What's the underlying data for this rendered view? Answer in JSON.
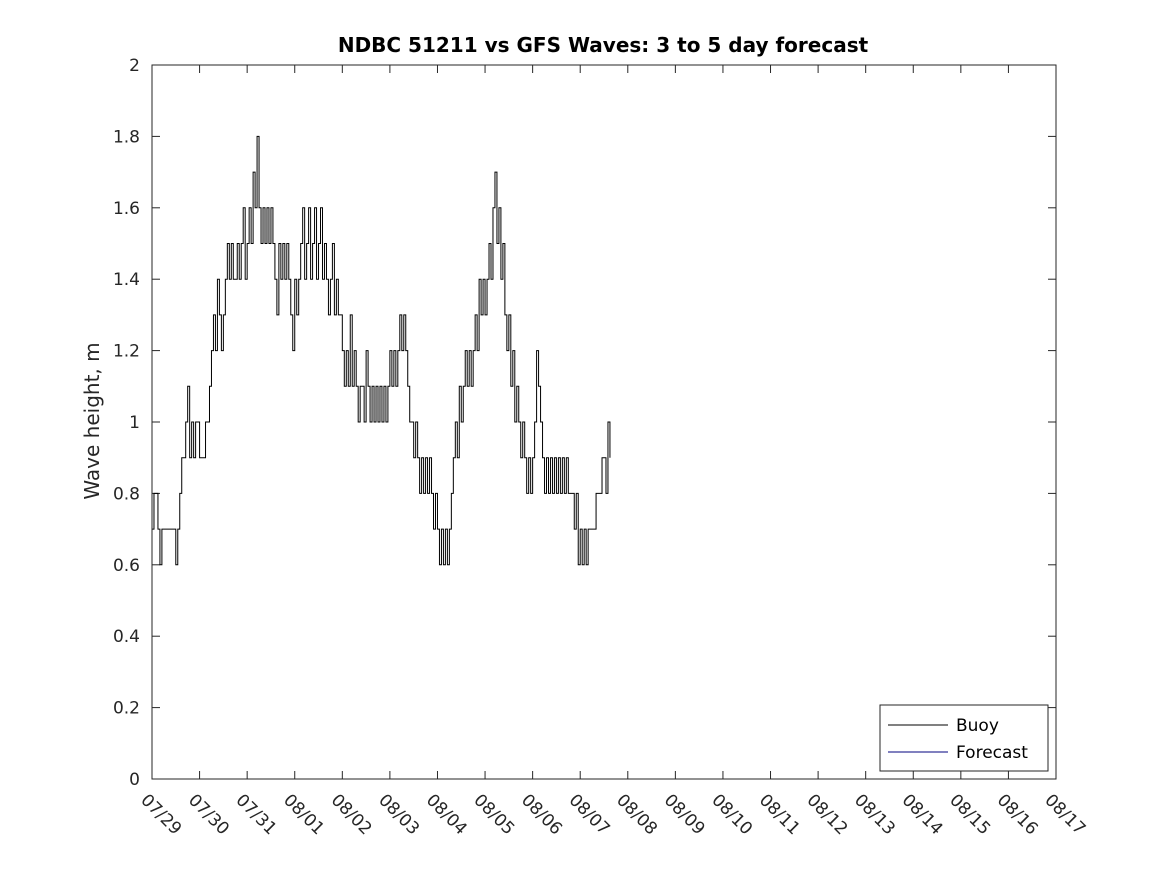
{
  "chart_data": {
    "type": "line",
    "title": "NDBC 51211 vs GFS Waves: 3 to 5 day forecast",
    "xlabel": "",
    "ylabel": "Wave height, m",
    "xlim": [
      "07/29",
      "08/17"
    ],
    "ylim": [
      0,
      2
    ],
    "x_ticks": [
      "07/29",
      "07/30",
      "07/31",
      "08/01",
      "08/02",
      "08/03",
      "08/04",
      "08/05",
      "08/06",
      "08/07",
      "08/08",
      "08/09",
      "08/10",
      "08/11",
      "08/12",
      "08/13",
      "08/14",
      "08/15",
      "08/16",
      "08/17"
    ],
    "y_ticks": [
      "0",
      "0.2",
      "0.4",
      "0.6",
      "0.8",
      "1",
      "1.2",
      "1.4",
      "1.6",
      "1.8",
      "2"
    ],
    "legend": {
      "position": "bottom-right"
    },
    "series": [
      {
        "name": "Buoy",
        "color": "#000000",
        "points": [
          [
            "07/29 00:00",
            0.7
          ],
          [
            "07/29 01:00",
            0.8
          ],
          [
            "07/29 02:00",
            0.8
          ],
          [
            "07/29 03:00",
            0.7
          ],
          [
            "07/29 04:00",
            0.6
          ],
          [
            "07/29 05:00",
            0.7
          ],
          [
            "07/29 07:00",
            0.7
          ],
          [
            "07/29 10:00",
            0.7
          ],
          [
            "07/29 12:00",
            0.6
          ],
          [
            "07/29 13:00",
            0.7
          ],
          [
            "07/29 14:00",
            0.8
          ],
          [
            "07/29 15:00",
            0.9
          ],
          [
            "07/29 17:00",
            1.0
          ],
          [
            "07/29 18:00",
            1.1
          ],
          [
            "07/29 19:00",
            0.9
          ],
          [
            "07/29 20:00",
            1.0
          ],
          [
            "07/29 21:00",
            0.9
          ],
          [
            "07/29 22:00",
            1.0
          ],
          [
            "07/30 00:00",
            0.9
          ],
          [
            "07/30 02:00",
            0.9
          ],
          [
            "07/30 03:00",
            1.0
          ],
          [
            "07/30 04:00",
            1.0
          ],
          [
            "07/30 05:00",
            1.1
          ],
          [
            "07/30 06:00",
            1.2
          ],
          [
            "07/30 07:00",
            1.3
          ],
          [
            "07/30 08:00",
            1.2
          ],
          [
            "07/30 09:00",
            1.4
          ],
          [
            "07/30 10:00",
            1.3
          ],
          [
            "07/30 11:00",
            1.2
          ],
          [
            "07/30 12:00",
            1.3
          ],
          [
            "07/30 13:00",
            1.4
          ],
          [
            "07/30 14:00",
            1.5
          ],
          [
            "07/30 15:00",
            1.4
          ],
          [
            "07/30 16:00",
            1.5
          ],
          [
            "07/30 17:00",
            1.4
          ],
          [
            "07/30 18:00",
            1.4
          ],
          [
            "07/30 19:00",
            1.5
          ],
          [
            "07/30 20:00",
            1.4
          ],
          [
            "07/30 21:00",
            1.5
          ],
          [
            "07/30 22:00",
            1.6
          ],
          [
            "07/30 23:00",
            1.4
          ],
          [
            "07/31 00:00",
            1.5
          ],
          [
            "07/31 01:00",
            1.6
          ],
          [
            "07/31 02:00",
            1.5
          ],
          [
            "07/31 03:00",
            1.7
          ],
          [
            "07/31 04:00",
            1.6
          ],
          [
            "07/31 05:00",
            1.8
          ],
          [
            "07/31 06:00",
            1.6
          ],
          [
            "07/31 07:00",
            1.5
          ],
          [
            "07/31 08:00",
            1.6
          ],
          [
            "07/31 09:00",
            1.5
          ],
          [
            "07/31 10:00",
            1.6
          ],
          [
            "07/31 11:00",
            1.5
          ],
          [
            "07/31 12:00",
            1.6
          ],
          [
            "07/31 13:00",
            1.5
          ],
          [
            "07/31 14:00",
            1.4
          ],
          [
            "07/31 15:00",
            1.3
          ],
          [
            "07/31 16:00",
            1.5
          ],
          [
            "07/31 17:00",
            1.4
          ],
          [
            "07/31 18:00",
            1.5
          ],
          [
            "07/31 19:00",
            1.4
          ],
          [
            "07/31 20:00",
            1.5
          ],
          [
            "07/31 21:00",
            1.4
          ],
          [
            "07/31 22:00",
            1.3
          ],
          [
            "07/31 23:00",
            1.2
          ],
          [
            "08/01 00:00",
            1.4
          ],
          [
            "08/01 01:00",
            1.3
          ],
          [
            "08/01 02:00",
            1.4
          ],
          [
            "08/01 03:00",
            1.5
          ],
          [
            "08/01 04:00",
            1.6
          ],
          [
            "08/01 05:00",
            1.4
          ],
          [
            "08/01 06:00",
            1.5
          ],
          [
            "08/01 07:00",
            1.6
          ],
          [
            "08/01 08:00",
            1.4
          ],
          [
            "08/01 09:00",
            1.5
          ],
          [
            "08/01 10:00",
            1.6
          ],
          [
            "08/01 11:00",
            1.4
          ],
          [
            "08/01 12:00",
            1.5
          ],
          [
            "08/01 13:00",
            1.6
          ],
          [
            "08/01 14:00",
            1.4
          ],
          [
            "08/01 15:00",
            1.5
          ],
          [
            "08/01 16:00",
            1.4
          ],
          [
            "08/01 17:00",
            1.3
          ],
          [
            "08/01 18:00",
            1.4
          ],
          [
            "08/01 19:00",
            1.5
          ],
          [
            "08/01 20:00",
            1.3
          ],
          [
            "08/01 21:00",
            1.4
          ],
          [
            "08/01 22:00",
            1.3
          ],
          [
            "08/01 23:00",
            1.3
          ],
          [
            "08/02 00:00",
            1.2
          ],
          [
            "08/02 01:00",
            1.1
          ],
          [
            "08/02 02:00",
            1.2
          ],
          [
            "08/02 03:00",
            1.1
          ],
          [
            "08/02 04:00",
            1.3
          ],
          [
            "08/02 05:00",
            1.1
          ],
          [
            "08/02 06:00",
            1.2
          ],
          [
            "08/02 07:00",
            1.1
          ],
          [
            "08/02 08:00",
            1.0
          ],
          [
            "08/02 09:00",
            1.1
          ],
          [
            "08/02 10:00",
            1.1
          ],
          [
            "08/02 11:00",
            1.0
          ],
          [
            "08/02 12:00",
            1.2
          ],
          [
            "08/02 13:00",
            1.1
          ],
          [
            "08/02 14:00",
            1.0
          ],
          [
            "08/02 15:00",
            1.1
          ],
          [
            "08/02 16:00",
            1.0
          ],
          [
            "08/02 17:00",
            1.1
          ],
          [
            "08/02 18:00",
            1.0
          ],
          [
            "08/02 19:00",
            1.1
          ],
          [
            "08/02 20:00",
            1.0
          ],
          [
            "08/02 21:00",
            1.1
          ],
          [
            "08/02 22:00",
            1.0
          ],
          [
            "08/02 23:00",
            1.1
          ],
          [
            "08/03 00:00",
            1.2
          ],
          [
            "08/03 01:00",
            1.1
          ],
          [
            "08/03 02:00",
            1.2
          ],
          [
            "08/03 03:00",
            1.1
          ],
          [
            "08/03 04:00",
            1.2
          ],
          [
            "08/03 05:00",
            1.3
          ],
          [
            "08/03 06:00",
            1.2
          ],
          [
            "08/03 07:00",
            1.3
          ],
          [
            "08/03 08:00",
            1.2
          ],
          [
            "08/03 09:00",
            1.1
          ],
          [
            "08/03 10:00",
            1.0
          ],
          [
            "08/03 11:00",
            1.0
          ],
          [
            "08/03 12:00",
            0.9
          ],
          [
            "08/03 13:00",
            1.0
          ],
          [
            "08/03 14:00",
            0.9
          ],
          [
            "08/03 15:00",
            0.8
          ],
          [
            "08/03 16:00",
            0.9
          ],
          [
            "08/03 17:00",
            0.8
          ],
          [
            "08/03 18:00",
            0.9
          ],
          [
            "08/03 19:00",
            0.8
          ],
          [
            "08/03 20:00",
            0.9
          ],
          [
            "08/03 21:00",
            0.8
          ],
          [
            "08/03 22:00",
            0.7
          ],
          [
            "08/03 23:00",
            0.8
          ],
          [
            "08/04 00:00",
            0.7
          ],
          [
            "08/04 01:00",
            0.6
          ],
          [
            "08/04 02:00",
            0.7
          ],
          [
            "08/04 03:00",
            0.6
          ],
          [
            "08/04 04:00",
            0.7
          ],
          [
            "08/04 05:00",
            0.6
          ],
          [
            "08/04 06:00",
            0.7
          ],
          [
            "08/04 07:00",
            0.8
          ],
          [
            "08/04 08:00",
            0.9
          ],
          [
            "08/04 09:00",
            1.0
          ],
          [
            "08/04 10:00",
            0.9
          ],
          [
            "08/04 11:00",
            1.1
          ],
          [
            "08/04 12:00",
            1.0
          ],
          [
            "08/04 13:00",
            1.1
          ],
          [
            "08/04 14:00",
            1.2
          ],
          [
            "08/04 15:00",
            1.1
          ],
          [
            "08/04 16:00",
            1.2
          ],
          [
            "08/04 17:00",
            1.1
          ],
          [
            "08/04 18:00",
            1.2
          ],
          [
            "08/04 19:00",
            1.3
          ],
          [
            "08/04 20:00",
            1.2
          ],
          [
            "08/04 21:00",
            1.4
          ],
          [
            "08/04 22:00",
            1.3
          ],
          [
            "08/04 23:00",
            1.4
          ],
          [
            "08/05 00:00",
            1.3
          ],
          [
            "08/05 01:00",
            1.4
          ],
          [
            "08/05 02:00",
            1.5
          ],
          [
            "08/05 03:00",
            1.4
          ],
          [
            "08/05 04:00",
            1.6
          ],
          [
            "08/05 05:00",
            1.7
          ],
          [
            "08/05 06:00",
            1.5
          ],
          [
            "08/05 07:00",
            1.6
          ],
          [
            "08/05 08:00",
            1.4
          ],
          [
            "08/05 09:00",
            1.5
          ],
          [
            "08/05 10:00",
            1.3
          ],
          [
            "08/05 11:00",
            1.2
          ],
          [
            "08/05 12:00",
            1.3
          ],
          [
            "08/05 13:00",
            1.1
          ],
          [
            "08/05 14:00",
            1.2
          ],
          [
            "08/05 15:00",
            1.0
          ],
          [
            "08/05 16:00",
            1.1
          ],
          [
            "08/05 17:00",
            1.0
          ],
          [
            "08/05 18:00",
            0.9
          ],
          [
            "08/05 19:00",
            1.0
          ],
          [
            "08/05 20:00",
            0.9
          ],
          [
            "08/05 21:00",
            0.8
          ],
          [
            "08/05 22:00",
            0.9
          ],
          [
            "08/05 23:00",
            0.8
          ],
          [
            "08/06 00:00",
            0.9
          ],
          [
            "08/06 01:00",
            1.0
          ],
          [
            "08/06 02:00",
            1.2
          ],
          [
            "08/06 03:00",
            1.1
          ],
          [
            "08/06 04:00",
            1.0
          ],
          [
            "08/06 05:00",
            0.9
          ],
          [
            "08/06 06:00",
            0.8
          ],
          [
            "08/06 07:00",
            0.9
          ],
          [
            "08/06 08:00",
            0.8
          ],
          [
            "08/06 09:00",
            0.9
          ],
          [
            "08/06 10:00",
            0.8
          ],
          [
            "08/06 11:00",
            0.9
          ],
          [
            "08/06 12:00",
            0.8
          ],
          [
            "08/06 13:00",
            0.9
          ],
          [
            "08/06 14:00",
            0.8
          ],
          [
            "08/06 15:00",
            0.9
          ],
          [
            "08/06 16:00",
            0.8
          ],
          [
            "08/06 17:00",
            0.9
          ],
          [
            "08/06 18:00",
            0.8
          ],
          [
            "08/06 19:00",
            0.8
          ],
          [
            "08/06 20:00",
            0.8
          ],
          [
            "08/06 21:00",
            0.7
          ],
          [
            "08/06 22:00",
            0.8
          ],
          [
            "08/06 23:00",
            0.6
          ],
          [
            "08/07 00:00",
            0.7
          ],
          [
            "08/07 01:00",
            0.6
          ],
          [
            "08/07 02:00",
            0.7
          ],
          [
            "08/07 03:00",
            0.6
          ],
          [
            "08/07 04:00",
            0.7
          ],
          [
            "08/07 05:00",
            0.7
          ],
          [
            "08/07 06:00",
            0.7
          ],
          [
            "08/07 07:00",
            0.7
          ],
          [
            "08/07 08:00",
            0.8
          ],
          [
            "08/07 09:00",
            0.8
          ],
          [
            "08/07 10:00",
            0.8
          ],
          [
            "08/07 11:00",
            0.9
          ],
          [
            "08/07 12:00",
            0.9
          ],
          [
            "08/07 13:00",
            0.8
          ],
          [
            "08/07 14:00",
            1.0
          ],
          [
            "08/07 15:00",
            0.9
          ]
        ]
      },
      {
        "name": "Forecast",
        "color": "#00007f",
        "points": []
      }
    ]
  }
}
